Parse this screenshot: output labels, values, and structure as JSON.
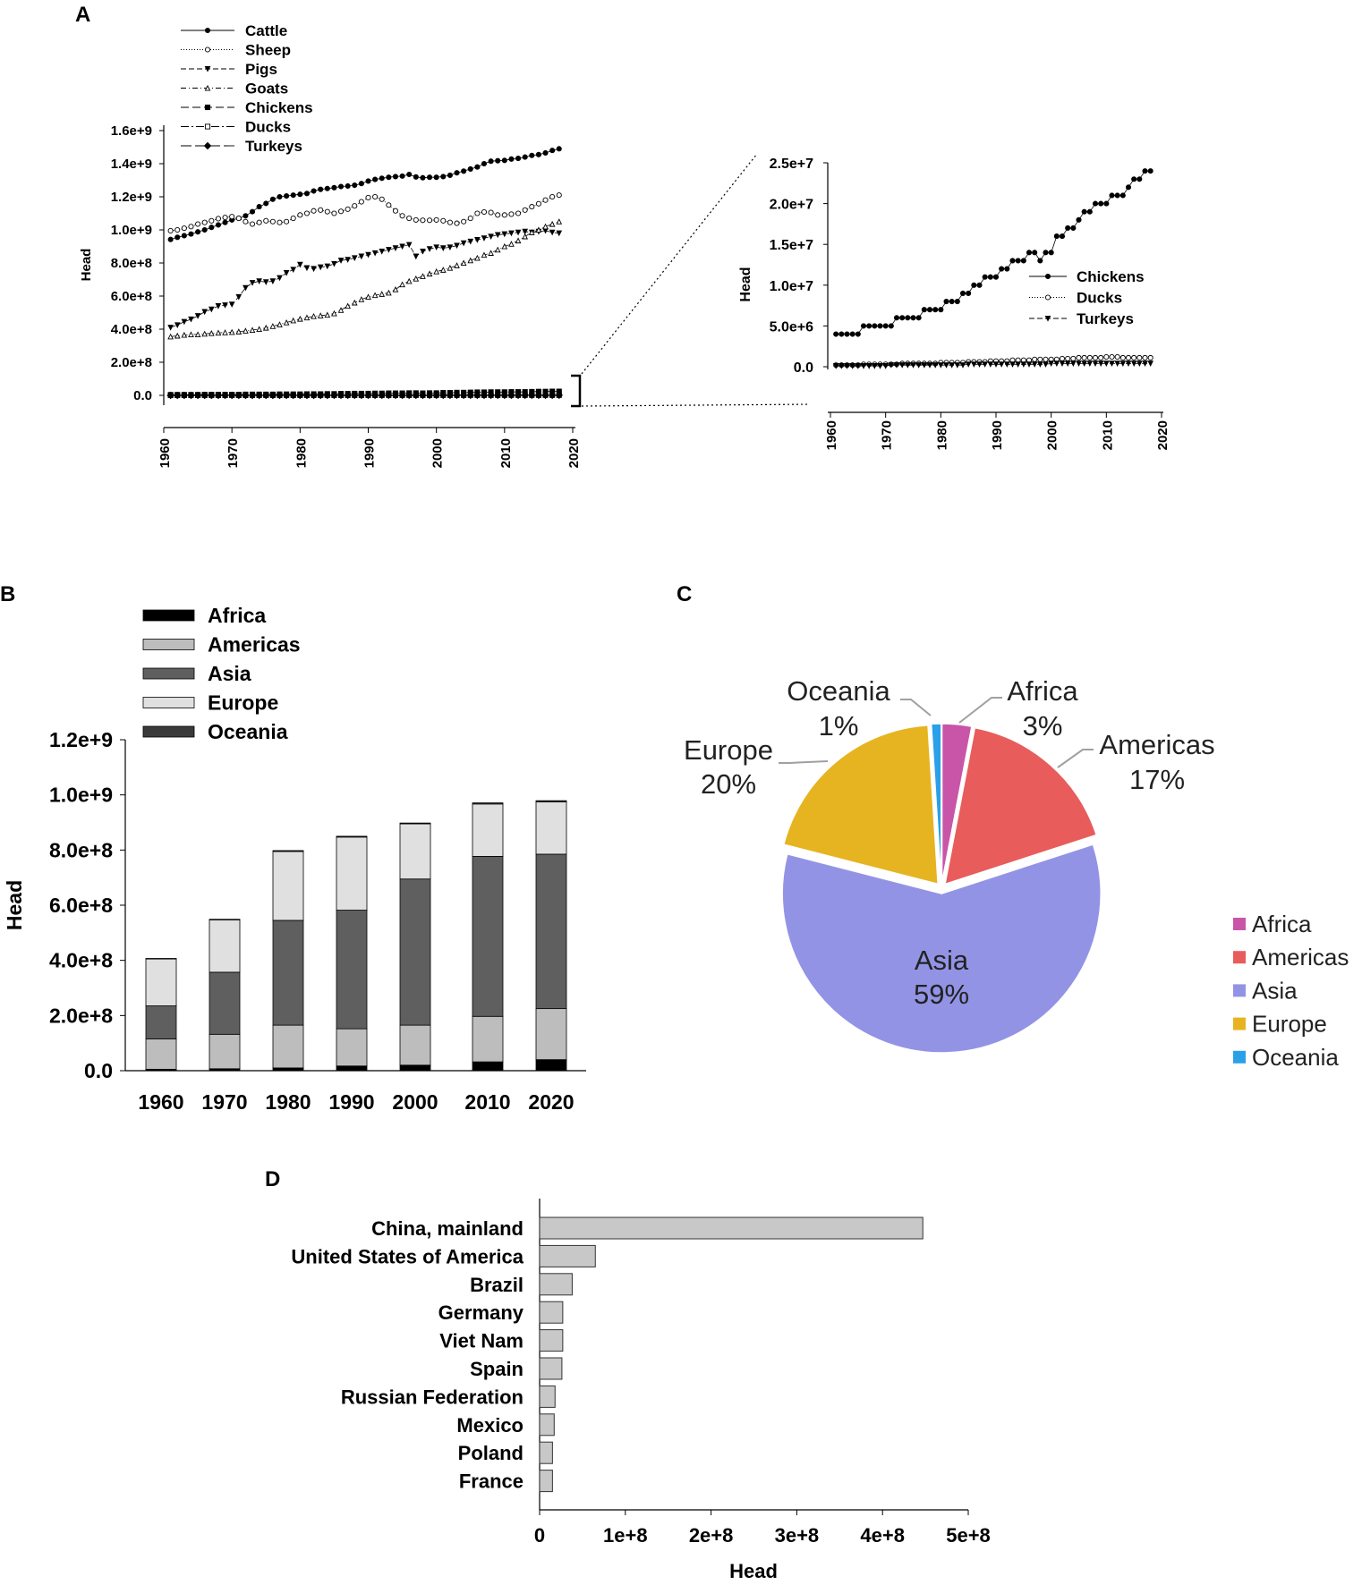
{
  "chart_data": [
    {
      "panel": "A",
      "type": "line",
      "ylabel": "Head",
      "ylim": [
        0,
        1600000000
      ],
      "yticks": [
        "0.0",
        "2.0e+8",
        "4.0e+8",
        "6.0e+8",
        "8.0e+8",
        "1.0e+9",
        "1.2e+9",
        "1.4e+9",
        "1.6e+9"
      ],
      "xlim": [
        1960,
        2020
      ],
      "xticks": [
        "1960",
        "1970",
        "1980",
        "1990",
        "2000",
        "2010",
        "2020"
      ],
      "x": [
        1961,
        1962,
        1963,
        1964,
        1965,
        1966,
        1967,
        1968,
        1969,
        1970,
        1971,
        1972,
        1973,
        1974,
        1975,
        1976,
        1977,
        1978,
        1979,
        1980,
        1981,
        1982,
        1983,
        1984,
        1985,
        1986,
        1987,
        1988,
        1989,
        1990,
        1991,
        1992,
        1993,
        1994,
        1995,
        1996,
        1997,
        1998,
        1999,
        2000,
        2001,
        2002,
        2003,
        2004,
        2005,
        2006,
        2007,
        2008,
        2009,
        2010,
        2011,
        2012,
        2013,
        2014,
        2015,
        2016,
        2017,
        2018
      ],
      "series": [
        {
          "name": "Cattle",
          "marker": "filled-circle",
          "values": [
            942,
            955,
            965,
            975,
            988,
            1000,
            1015,
            1030,
            1045,
            1060,
            1070,
            1085,
            1110,
            1140,
            1160,
            1185,
            1200,
            1205,
            1210,
            1215,
            1220,
            1235,
            1245,
            1250,
            1255,
            1262,
            1265,
            1270,
            1280,
            1295,
            1305,
            1312,
            1318,
            1322,
            1325,
            1335,
            1320,
            1315,
            1318,
            1318,
            1322,
            1330,
            1345,
            1355,
            1368,
            1380,
            1400,
            1415,
            1418,
            1420,
            1428,
            1432,
            1440,
            1450,
            1455,
            1465,
            1480,
            1490
          ]
        },
        {
          "name": "Sheep",
          "marker": "open-circle",
          "values": [
            995,
            1000,
            1010,
            1020,
            1035,
            1045,
            1055,
            1068,
            1075,
            1080,
            1070,
            1050,
            1035,
            1045,
            1055,
            1050,
            1045,
            1050,
            1070,
            1090,
            1100,
            1115,
            1120,
            1110,
            1100,
            1112,
            1125,
            1145,
            1170,
            1195,
            1200,
            1185,
            1150,
            1115,
            1085,
            1070,
            1060,
            1058,
            1058,
            1060,
            1055,
            1045,
            1040,
            1050,
            1070,
            1100,
            1108,
            1105,
            1090,
            1090,
            1095,
            1100,
            1120,
            1140,
            1158,
            1180,
            1200,
            1210
          ]
        },
        {
          "name": "Pigs",
          "marker": "filled-triangle-down",
          "values": [
            410,
            425,
            445,
            460,
            480,
            505,
            520,
            540,
            545,
            550,
            595,
            650,
            680,
            690,
            685,
            690,
            710,
            740,
            760,
            790,
            770,
            765,
            775,
            780,
            795,
            815,
            820,
            830,
            840,
            850,
            860,
            870,
            880,
            890,
            900,
            910,
            840,
            870,
            885,
            895,
            890,
            895,
            905,
            920,
            930,
            940,
            950,
            960,
            970,
            975,
            980,
            985,
            990,
            985,
            990,
            995,
            985,
            980
          ]
        },
        {
          "name": "Goats",
          "marker": "open-triangle",
          "values": [
            355,
            360,
            365,
            368,
            368,
            372,
            375,
            378,
            380,
            382,
            385,
            390,
            395,
            400,
            408,
            418,
            428,
            440,
            452,
            462,
            470,
            478,
            482,
            486,
            495,
            515,
            540,
            560,
            580,
            595,
            605,
            612,
            620,
            640,
            670,
            690,
            705,
            720,
            735,
            748,
            758,
            770,
            785,
            800,
            815,
            830,
            848,
            860,
            880,
            900,
            915,
            935,
            960,
            985,
            1000,
            1020,
            1035,
            1050
          ]
        },
        {
          "name": "Chickens",
          "marker": "filled-square",
          "values": [
            4,
            4,
            4,
            4,
            4,
            5,
            5,
            5,
            5,
            5,
            5,
            6,
            6,
            6,
            6,
            6,
            7,
            7,
            7,
            7,
            8,
            8,
            8,
            9,
            9,
            10,
            10,
            11,
            11,
            11,
            12,
            12,
            13,
            13,
            13,
            14,
            14,
            13,
            14,
            14,
            16,
            16,
            17,
            17,
            18,
            19,
            19,
            20,
            20,
            20,
            21,
            21,
            21,
            22,
            23,
            23,
            24,
            24
          ]
        },
        {
          "name": "Ducks",
          "marker": "open-square",
          "values": [
            0.2,
            0.2,
            0.2,
            0.2,
            0.2,
            0.3,
            0.3,
            0.3,
            0.3,
            0.3,
            0.3,
            0.3,
            0.4,
            0.4,
            0.4,
            0.4,
            0.4,
            0.4,
            0.4,
            0.5,
            0.5,
            0.5,
            0.5,
            0.5,
            0.6,
            0.6,
            0.6,
            0.6,
            0.7,
            0.7,
            0.7,
            0.7,
            0.8,
            0.8,
            0.8,
            0.8,
            0.9,
            0.9,
            0.9,
            0.9,
            0.9,
            1,
            1,
            1,
            1.1,
            1.1,
            1.1,
            1.1,
            1.1,
            1.2,
            1.2,
            1.2,
            1.1,
            1.1,
            1.1,
            1.1,
            1.1,
            1.1
          ]
        },
        {
          "name": "Turkeys",
          "marker": "filled-diamond",
          "values": [
            0.1,
            0.1,
            0.1,
            0.1,
            0.1,
            0.1,
            0.1,
            0.1,
            0.1,
            0.1,
            0.2,
            0.2,
            0.2,
            0.2,
            0.2,
            0.2,
            0.2,
            0.2,
            0.2,
            0.2,
            0.2,
            0.2,
            0.2,
            0.2,
            0.3,
            0.3,
            0.3,
            0.3,
            0.3,
            0.3,
            0.3,
            0.3,
            0.3,
            0.3,
            0.3,
            0.3,
            0.3,
            0.3,
            0.3,
            0.4,
            0.4,
            0.4,
            0.4,
            0.4,
            0.4,
            0.4,
            0.4,
            0.4,
            0.4,
            0.4,
            0.4,
            0.4,
            0.4,
            0.4,
            0.4,
            0.4,
            0.4,
            0.4
          ]
        }
      ],
      "units_note_millions": true
    },
    {
      "panel": "A-inset",
      "type": "line",
      "ylabel": "Head",
      "ylim": [
        0,
        25000000
      ],
      "yticks": [
        "0.0",
        "5.0e+6",
        "1.0e+7",
        "1.5e+7",
        "2.0e+7",
        "2.5e+7"
      ],
      "xlim": [
        1960,
        2020
      ],
      "xticks": [
        "1960",
        "1970",
        "1980",
        "1990",
        "2000",
        "2010",
        "2020"
      ],
      "legend": [
        "Chickens",
        "Ducks",
        "Turkeys"
      ],
      "units_note_millions": true
    },
    {
      "panel": "B",
      "type": "bar",
      "stacked": true,
      "ylabel": "Head",
      "ylim": [
        0,
        1200000000
      ],
      "yticks": [
        "0.0",
        "2.0e+8",
        "4.0e+8",
        "6.0e+8",
        "8.0e+8",
        "1.0e+9",
        "1.2e+9"
      ],
      "categories": [
        "1960",
        "1970",
        "1980",
        "1990",
        "2000",
        "2010",
        "2020"
      ],
      "series": [
        {
          "name": "Africa",
          "values": [
            5000000,
            7000000,
            10000000,
            17000000,
            20000000,
            32000000,
            40000000
          ]
        },
        {
          "name": "Americas",
          "values": [
            110000000,
            125000000,
            155000000,
            135000000,
            145000000,
            165000000,
            185000000
          ]
        },
        {
          "name": "Asia",
          "values": [
            120000000,
            225000000,
            380000000,
            430000000,
            530000000,
            580000000,
            560000000
          ]
        },
        {
          "name": "Europe",
          "values": [
            170000000,
            190000000,
            250000000,
            265000000,
            200000000,
            190000000,
            190000000
          ]
        },
        {
          "name": "Oceania",
          "values": [
            2000000,
            2000000,
            3000000,
            3000000,
            3000000,
            4000000,
            4000000
          ]
        }
      ],
      "legend_placement": "top-left"
    },
    {
      "panel": "C",
      "type": "pie",
      "slices": [
        {
          "name": "Africa",
          "value": 3,
          "label": "Africa",
          "pct": "3%"
        },
        {
          "name": "Americas",
          "value": 17,
          "label": "Americas",
          "pct": "17%"
        },
        {
          "name": "Asia",
          "value": 59,
          "label": "Asia",
          "pct": "59%"
        },
        {
          "name": "Europe",
          "value": 20,
          "label": "Europe",
          "pct": "20%"
        },
        {
          "name": "Oceania",
          "value": 1,
          "label": "Oceania",
          "pct": "1%"
        }
      ],
      "legend_placement": "right"
    },
    {
      "panel": "D",
      "type": "bar",
      "orientation": "horizontal",
      "xlabel": "Head",
      "xlim": [
        0,
        500000000
      ],
      "xticks": [
        "0",
        "1e+8",
        "2e+8",
        "3e+8",
        "4e+8",
        "5e+8"
      ],
      "categories": [
        "China, mainland",
        "United States of America",
        "Brazil",
        "Germany",
        "Viet Nam",
        "Spain",
        "Russian Federation",
        "Mexico",
        "Poland",
        "France"
      ],
      "values": [
        447000000,
        65000000,
        38000000,
        27000000,
        27000000,
        26000000,
        18000000,
        17000000,
        15000000,
        15000000
      ]
    }
  ],
  "labels": {
    "panel_a": "A",
    "panel_b": "B",
    "panel_c": "C",
    "panel_d": "D"
  },
  "colors": {
    "africa_pie": "#c955a8",
    "americas_pie": "#e85c5c",
    "asia_pie": "#9393e6",
    "europe_pie": "#e6b421",
    "oceania_pie": "#2aa0e8",
    "b_africa": "#000000",
    "b_americas": "#bdbdbd",
    "b_asia": "#5f5f5f",
    "b_europe": "#e0e0e0",
    "b_oceania": "#3a3a3a",
    "d_bar": "#c8c8c8"
  }
}
